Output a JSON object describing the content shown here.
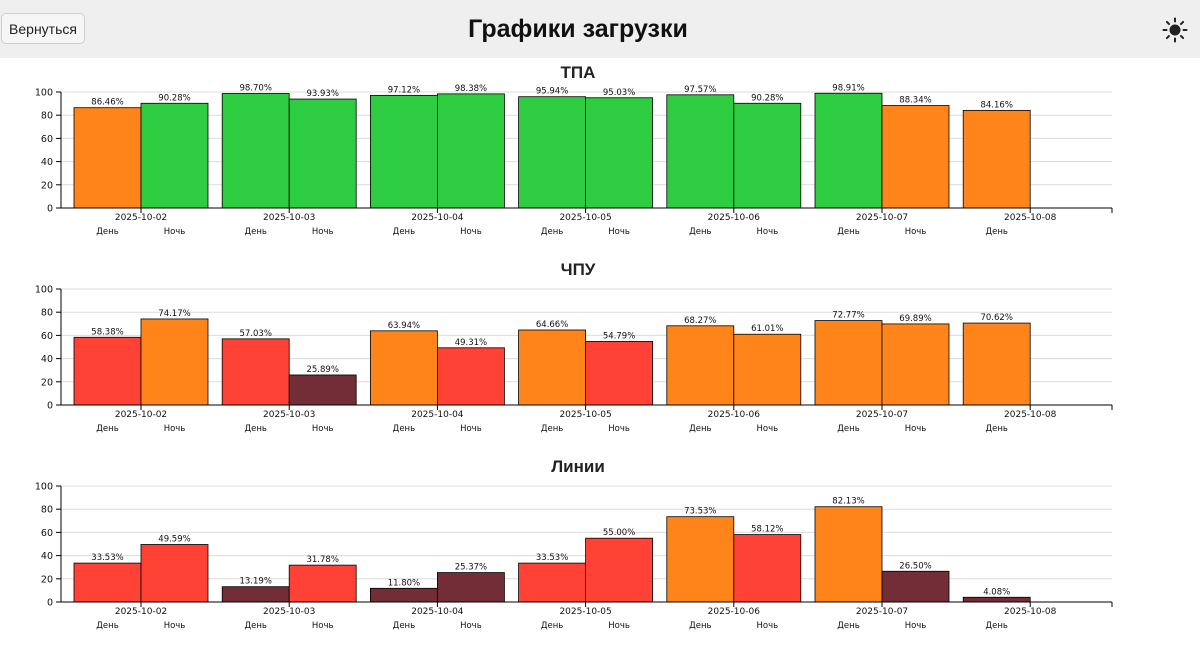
{
  "header": {
    "back_label": "Вернуться",
    "title": "Графики загрузки",
    "theme_icon": "sun-icon"
  },
  "colors": {
    "green": "#2ecc40",
    "orange": "#ff851b",
    "red": "#ff4136",
    "darkred": "#722d36"
  },
  "chart_data": [
    {
      "type": "bar",
      "title": "ТПА",
      "ylim": [
        0,
        100
      ],
      "yticks": [
        0,
        20,
        40,
        60,
        80,
        100
      ],
      "grid": true,
      "categories": [
        "2025-10-02",
        "2025-10-03",
        "2025-10-04",
        "2025-10-05",
        "2025-10-06",
        "2025-10-07",
        "2025-10-08"
      ],
      "shift_labels": [
        "День",
        "Ночь"
      ],
      "series": [
        {
          "name": "День",
          "values": [
            86.46,
            98.7,
            97.12,
            95.94,
            97.57,
            98.91,
            84.16
          ],
          "labels": [
            "86.46%",
            "98.70%",
            "97.12%",
            "95.94%",
            "97.57%",
            "98.91%",
            "84.16%"
          ],
          "colors": [
            "orange",
            "green",
            "green",
            "green",
            "green",
            "green",
            "orange"
          ]
        },
        {
          "name": "Ночь",
          "values": [
            90.28,
            93.93,
            98.38,
            95.03,
            90.28,
            88.34,
            null
          ],
          "labels": [
            "90.28%",
            "93.93%",
            "98.38%",
            "95.03%",
            "90.28%",
            "88.34%",
            null
          ],
          "colors": [
            "green",
            "green",
            "green",
            "green",
            "green",
            "orange",
            null
          ]
        }
      ]
    },
    {
      "type": "bar",
      "title": "ЧПУ",
      "ylim": [
        0,
        100
      ],
      "yticks": [
        0,
        20,
        40,
        60,
        80,
        100
      ],
      "grid": true,
      "categories": [
        "2025-10-02",
        "2025-10-03",
        "2025-10-04",
        "2025-10-05",
        "2025-10-06",
        "2025-10-07",
        "2025-10-08"
      ],
      "shift_labels": [
        "День",
        "Ночь"
      ],
      "series": [
        {
          "name": "День",
          "values": [
            58.38,
            57.03,
            63.94,
            64.66,
            68.27,
            72.77,
            70.62
          ],
          "labels": [
            "58.38%",
            "57.03%",
            "63.94%",
            "64.66%",
            "68.27%",
            "72.77%",
            "70.62%"
          ],
          "colors": [
            "red",
            "red",
            "orange",
            "orange",
            "orange",
            "orange",
            "orange"
          ]
        },
        {
          "name": "Ночь",
          "values": [
            74.17,
            25.89,
            49.31,
            54.79,
            61.01,
            69.89,
            null
          ],
          "labels": [
            "74.17%",
            "25.89%",
            "49.31%",
            "54.79%",
            "61.01%",
            "69.89%",
            null
          ],
          "colors": [
            "orange",
            "darkred",
            "red",
            "red",
            "orange",
            "orange",
            null
          ]
        }
      ]
    },
    {
      "type": "bar",
      "title": "Линии",
      "ylim": [
        0,
        100
      ],
      "yticks": [
        0,
        20,
        40,
        60,
        80,
        100
      ],
      "grid": true,
      "categories": [
        "2025-10-02",
        "2025-10-03",
        "2025-10-04",
        "2025-10-05",
        "2025-10-06",
        "2025-10-07",
        "2025-10-08"
      ],
      "shift_labels": [
        "День",
        "Ночь"
      ],
      "series": [
        {
          "name": "День",
          "values": [
            33.53,
            13.19,
            11.8,
            33.53,
            73.53,
            82.13,
            4.08
          ],
          "labels": [
            "33.53%",
            "13.19%",
            "11.80%",
            "33.53%",
            "73.53%",
            "82.13%",
            "4.08%"
          ],
          "colors": [
            "red",
            "darkred",
            "darkred",
            "red",
            "orange",
            "orange",
            "darkred"
          ]
        },
        {
          "name": "Ночь",
          "values": [
            49.59,
            31.78,
            25.37,
            55.0,
            58.12,
            26.5,
            null
          ],
          "labels": [
            "49.59%",
            "31.78%",
            "25.37%",
            "55.00%",
            "58.12%",
            "26.50%",
            null
          ],
          "colors": [
            "red",
            "red",
            "darkred",
            "red",
            "red",
            "darkred",
            null
          ]
        }
      ]
    }
  ]
}
